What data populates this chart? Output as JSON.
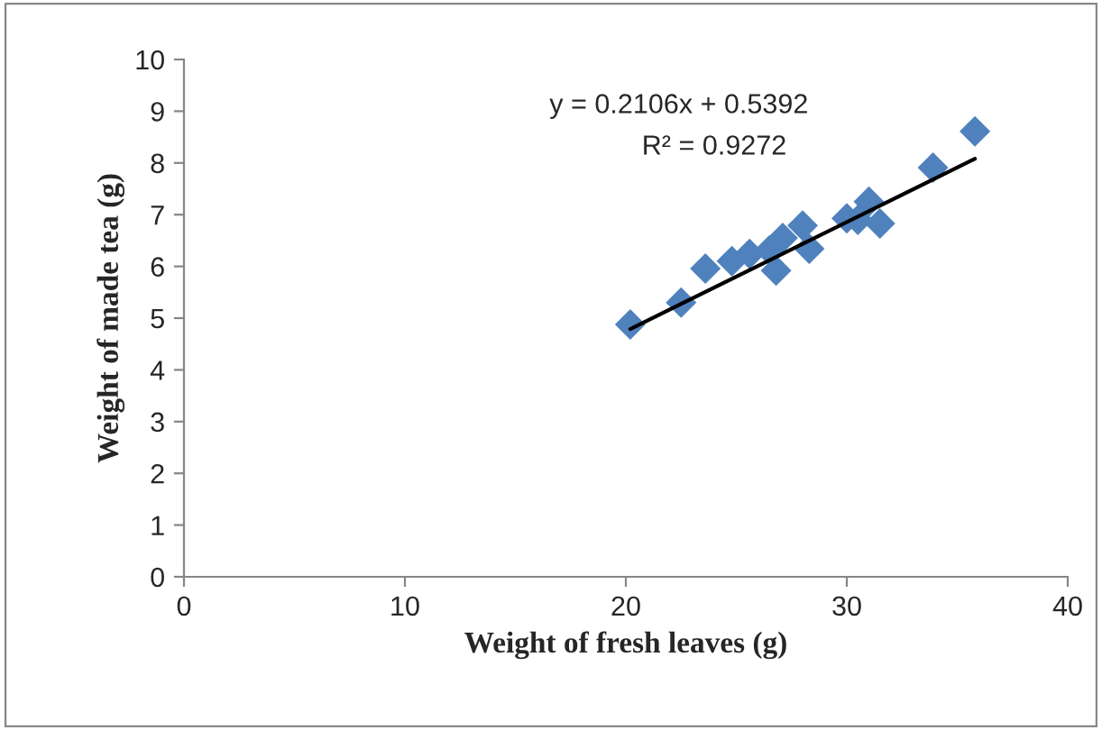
{
  "chart_data": {
    "type": "scatter",
    "xlabel": "Weight of fresh leaves (g)",
    "ylabel": "Weight of made tea (g)",
    "annotations": [
      "y = 0.2106x + 0.5392",
      "R² = 0.9272"
    ],
    "series": [
      {
        "color": "#4f81bd",
        "marker": "diamond",
        "x": [
          20.2,
          22.5,
          23.6,
          24.8,
          25.6,
          26.5,
          26.8,
          27.1,
          28.0,
          28.3,
          30.0,
          30.5,
          31.0,
          31.5,
          33.9,
          35.8
        ],
        "values": [
          4.88,
          5.3,
          5.96,
          6.1,
          6.24,
          6.31,
          5.92,
          6.55,
          6.79,
          6.34,
          6.93,
          6.9,
          7.25,
          6.83,
          7.91,
          8.61
        ]
      },
      {
        "type": "line",
        "color": "#000000",
        "x": [
          20.2,
          35.8
        ],
        "values": [
          4.79,
          8.08
        ]
      }
    ],
    "xlim": [
      0,
      40
    ],
    "xticks": [
      0,
      10,
      20,
      30,
      40
    ],
    "ylim": [
      0,
      10
    ],
    "yticks": [
      0,
      1,
      2,
      3,
      4,
      5,
      6,
      7,
      8,
      9,
      10
    ],
    "grid": false,
    "legend": false
  }
}
